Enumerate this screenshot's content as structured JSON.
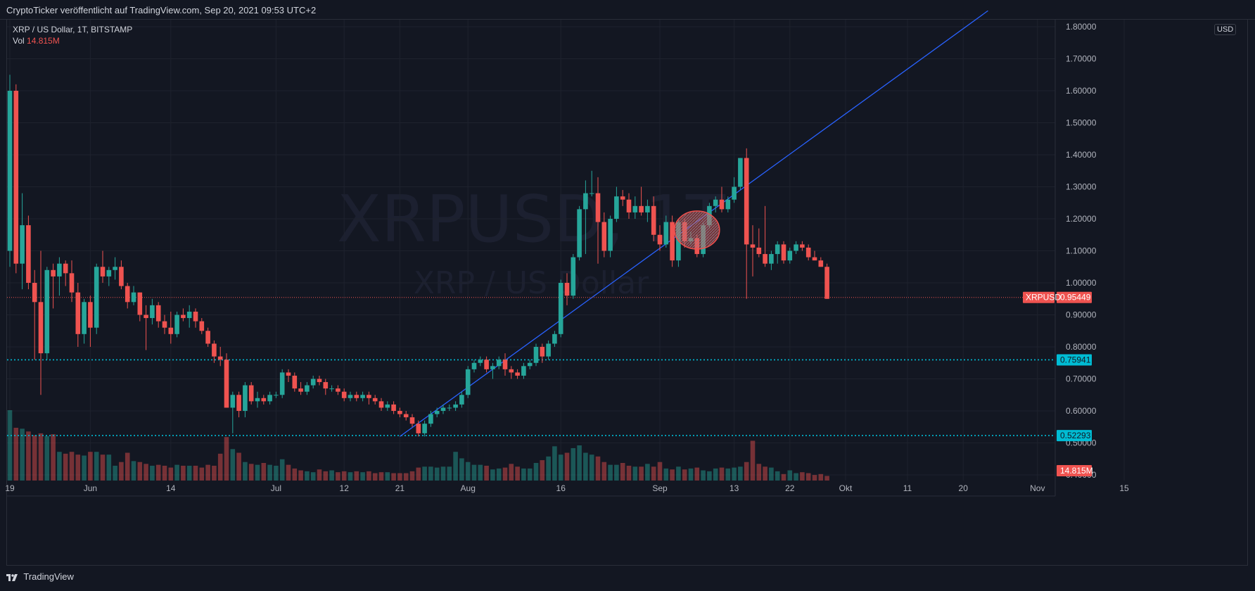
{
  "header": {
    "publisher_line": "CryptoTicker veröffentlicht auf TradingView.com, Sep 20, 2021 09:53 UTC+2"
  },
  "legend": {
    "symbol_line": "XRP / US Dollar, 1T, BITSTAMP",
    "vol_label": "Vol",
    "vol_value": "14.815M"
  },
  "watermark": {
    "ticker": "XRPUSD, 1T",
    "name": "XRP / US Dollar"
  },
  "currency_badge": "USD",
  "footer": {
    "brand": "TradingView"
  },
  "colors": {
    "up": "#26a69a",
    "down": "#ef5350",
    "trendline": "#2962ff",
    "level_line": "#00bcd4",
    "background": "#131722",
    "grid": "#1e222d"
  },
  "chart_data": {
    "type": "candlestick",
    "title": "",
    "symbol": "XRPUSD",
    "timeframe": "1T",
    "exchange": "BITSTAMP",
    "ylim": [
      0.38,
      1.82
    ],
    "y_ticks": [
      "1.80000",
      "1.70000",
      "1.60000",
      "1.50000",
      "1.40000",
      "1.30000",
      "1.20000",
      "1.10000",
      "1.00000",
      "0.90000",
      "0.80000",
      "0.70000",
      "0.60000",
      "0.50000",
      "0.40000"
    ],
    "x_ticks": [
      "19",
      "Jun",
      "14",
      "Jul",
      "12",
      "21",
      "Aug",
      "16",
      "Sep",
      "13",
      "22",
      "Okt",
      "11",
      "20",
      "Nov",
      "15"
    ],
    "x_start": "2021-05-19",
    "candles": [
      {
        "o": 1.1,
        "h": 1.65,
        "l": 1.05,
        "c": 1.6
      },
      {
        "o": 1.6,
        "h": 1.62,
        "l": 1.03,
        "c": 1.06
      },
      {
        "o": 1.06,
        "h": 1.28,
        "l": 0.98,
        "c": 1.18
      },
      {
        "o": 1.18,
        "h": 1.21,
        "l": 0.98,
        "c": 1.0
      },
      {
        "o": 1.0,
        "h": 1.04,
        "l": 0.76,
        "c": 0.94
      },
      {
        "o": 0.94,
        "h": 1.1,
        "l": 0.65,
        "c": 0.78
      },
      {
        "o": 0.78,
        "h": 1.05,
        "l": 0.76,
        "c": 1.04
      },
      {
        "o": 1.04,
        "h": 1.06,
        "l": 0.92,
        "c": 1.02
      },
      {
        "o": 1.02,
        "h": 1.08,
        "l": 0.96,
        "c": 1.06
      },
      {
        "o": 1.06,
        "h": 1.07,
        "l": 0.99,
        "c": 1.03
      },
      {
        "o": 1.03,
        "h": 1.07,
        "l": 0.94,
        "c": 0.97
      },
      {
        "o": 0.97,
        "h": 1.0,
        "l": 0.8,
        "c": 0.84
      },
      {
        "o": 0.84,
        "h": 0.95,
        "l": 0.81,
        "c": 0.94
      },
      {
        "o": 0.94,
        "h": 0.96,
        "l": 0.8,
        "c": 0.86
      },
      {
        "o": 0.86,
        "h": 1.06,
        "l": 0.84,
        "c": 1.05
      },
      {
        "o": 1.05,
        "h": 1.1,
        "l": 1.0,
        "c": 1.02
      },
      {
        "o": 1.02,
        "h": 1.05,
        "l": 0.99,
        "c": 1.04
      },
      {
        "o": 1.04,
        "h": 1.08,
        "l": 1.01,
        "c": 1.05
      },
      {
        "o": 1.05,
        "h": 1.07,
        "l": 0.98,
        "c": 0.99
      },
      {
        "o": 0.99,
        "h": 1.0,
        "l": 0.92,
        "c": 0.94
      },
      {
        "o": 0.94,
        "h": 0.99,
        "l": 0.93,
        "c": 0.97
      },
      {
        "o": 0.97,
        "h": 0.97,
        "l": 0.88,
        "c": 0.9
      },
      {
        "o": 0.9,
        "h": 0.93,
        "l": 0.79,
        "c": 0.89
      },
      {
        "o": 0.89,
        "h": 0.95,
        "l": 0.87,
        "c": 0.93
      },
      {
        "o": 0.93,
        "h": 0.94,
        "l": 0.86,
        "c": 0.88
      },
      {
        "o": 0.88,
        "h": 0.9,
        "l": 0.84,
        "c": 0.86
      },
      {
        "o": 0.86,
        "h": 0.91,
        "l": 0.81,
        "c": 0.84
      },
      {
        "o": 0.84,
        "h": 0.91,
        "l": 0.83,
        "c": 0.9
      },
      {
        "o": 0.9,
        "h": 0.92,
        "l": 0.88,
        "c": 0.89
      },
      {
        "o": 0.89,
        "h": 0.93,
        "l": 0.86,
        "c": 0.91
      },
      {
        "o": 0.91,
        "h": 0.92,
        "l": 0.86,
        "c": 0.88
      },
      {
        "o": 0.88,
        "h": 0.89,
        "l": 0.84,
        "c": 0.85
      },
      {
        "o": 0.85,
        "h": 0.86,
        "l": 0.8,
        "c": 0.81
      },
      {
        "o": 0.81,
        "h": 0.82,
        "l": 0.75,
        "c": 0.77
      },
      {
        "o": 0.77,
        "h": 0.8,
        "l": 0.74,
        "c": 0.76
      },
      {
        "o": 0.76,
        "h": 0.78,
        "l": 0.61,
        "c": 0.61
      },
      {
        "o": 0.61,
        "h": 0.66,
        "l": 0.53,
        "c": 0.65
      },
      {
        "o": 0.65,
        "h": 0.66,
        "l": 0.58,
        "c": 0.6
      },
      {
        "o": 0.6,
        "h": 0.69,
        "l": 0.58,
        "c": 0.68
      },
      {
        "o": 0.68,
        "h": 0.69,
        "l": 0.62,
        "c": 0.63
      },
      {
        "o": 0.63,
        "h": 0.66,
        "l": 0.61,
        "c": 0.64
      },
      {
        "o": 0.64,
        "h": 0.65,
        "l": 0.62,
        "c": 0.63
      },
      {
        "o": 0.63,
        "h": 0.66,
        "l": 0.62,
        "c": 0.65
      },
      {
        "o": 0.65,
        "h": 0.66,
        "l": 0.64,
        "c": 0.65
      },
      {
        "o": 0.65,
        "h": 0.73,
        "l": 0.64,
        "c": 0.72
      },
      {
        "o": 0.72,
        "h": 0.73,
        "l": 0.69,
        "c": 0.71
      },
      {
        "o": 0.71,
        "h": 0.72,
        "l": 0.66,
        "c": 0.67
      },
      {
        "o": 0.67,
        "h": 0.69,
        "l": 0.65,
        "c": 0.66
      },
      {
        "o": 0.66,
        "h": 0.69,
        "l": 0.65,
        "c": 0.68
      },
      {
        "o": 0.68,
        "h": 0.71,
        "l": 0.67,
        "c": 0.7
      },
      {
        "o": 0.7,
        "h": 0.71,
        "l": 0.68,
        "c": 0.69
      },
      {
        "o": 0.69,
        "h": 0.7,
        "l": 0.65,
        "c": 0.67
      },
      {
        "o": 0.67,
        "h": 0.68,
        "l": 0.66,
        "c": 0.67
      },
      {
        "o": 0.67,
        "h": 0.68,
        "l": 0.65,
        "c": 0.66
      },
      {
        "o": 0.66,
        "h": 0.67,
        "l": 0.63,
        "c": 0.64
      },
      {
        "o": 0.64,
        "h": 0.66,
        "l": 0.63,
        "c": 0.65
      },
      {
        "o": 0.65,
        "h": 0.66,
        "l": 0.63,
        "c": 0.64
      },
      {
        "o": 0.64,
        "h": 0.66,
        "l": 0.63,
        "c": 0.65
      },
      {
        "o": 0.65,
        "h": 0.66,
        "l": 0.62,
        "c": 0.64
      },
      {
        "o": 0.64,
        "h": 0.65,
        "l": 0.62,
        "c": 0.63
      },
      {
        "o": 0.63,
        "h": 0.64,
        "l": 0.6,
        "c": 0.61
      },
      {
        "o": 0.61,
        "h": 0.63,
        "l": 0.6,
        "c": 0.62
      },
      {
        "o": 0.62,
        "h": 0.63,
        "l": 0.59,
        "c": 0.6
      },
      {
        "o": 0.6,
        "h": 0.61,
        "l": 0.58,
        "c": 0.59
      },
      {
        "o": 0.59,
        "h": 0.6,
        "l": 0.57,
        "c": 0.58
      },
      {
        "o": 0.58,
        "h": 0.59,
        "l": 0.55,
        "c": 0.56
      },
      {
        "o": 0.56,
        "h": 0.57,
        "l": 0.52,
        "c": 0.53
      },
      {
        "o": 0.53,
        "h": 0.57,
        "l": 0.52,
        "c": 0.56
      },
      {
        "o": 0.56,
        "h": 0.6,
        "l": 0.55,
        "c": 0.59
      },
      {
        "o": 0.59,
        "h": 0.61,
        "l": 0.58,
        "c": 0.6
      },
      {
        "o": 0.6,
        "h": 0.62,
        "l": 0.59,
        "c": 0.61
      },
      {
        "o": 0.61,
        "h": 0.62,
        "l": 0.6,
        "c": 0.61
      },
      {
        "o": 0.61,
        "h": 0.63,
        "l": 0.6,
        "c": 0.62
      },
      {
        "o": 0.62,
        "h": 0.66,
        "l": 0.61,
        "c": 0.65
      },
      {
        "o": 0.65,
        "h": 0.74,
        "l": 0.64,
        "c": 0.73
      },
      {
        "o": 0.73,
        "h": 0.76,
        "l": 0.72,
        "c": 0.75
      },
      {
        "o": 0.75,
        "h": 0.77,
        "l": 0.74,
        "c": 0.76
      },
      {
        "o": 0.76,
        "h": 0.77,
        "l": 0.72,
        "c": 0.73
      },
      {
        "o": 0.73,
        "h": 0.75,
        "l": 0.7,
        "c": 0.74
      },
      {
        "o": 0.74,
        "h": 0.77,
        "l": 0.73,
        "c": 0.76
      },
      {
        "o": 0.76,
        "h": 0.78,
        "l": 0.71,
        "c": 0.73
      },
      {
        "o": 0.73,
        "h": 0.74,
        "l": 0.7,
        "c": 0.72
      },
      {
        "o": 0.72,
        "h": 0.73,
        "l": 0.7,
        "c": 0.71
      },
      {
        "o": 0.71,
        "h": 0.75,
        "l": 0.7,
        "c": 0.74
      },
      {
        "o": 0.74,
        "h": 0.76,
        "l": 0.73,
        "c": 0.75
      },
      {
        "o": 0.75,
        "h": 0.81,
        "l": 0.74,
        "c": 0.8
      },
      {
        "o": 0.8,
        "h": 0.81,
        "l": 0.75,
        "c": 0.77
      },
      {
        "o": 0.77,
        "h": 0.82,
        "l": 0.76,
        "c": 0.81
      },
      {
        "o": 0.81,
        "h": 0.85,
        "l": 0.8,
        "c": 0.84
      },
      {
        "o": 0.84,
        "h": 1.01,
        "l": 0.83,
        "c": 1.0
      },
      {
        "o": 1.0,
        "h": 1.03,
        "l": 0.93,
        "c": 0.96
      },
      {
        "o": 0.96,
        "h": 1.09,
        "l": 0.95,
        "c": 1.08
      },
      {
        "o": 1.08,
        "h": 1.24,
        "l": 1.07,
        "c": 1.23
      },
      {
        "o": 1.23,
        "h": 1.32,
        "l": 1.09,
        "c": 1.28
      },
      {
        "o": 1.28,
        "h": 1.35,
        "l": 1.27,
        "c": 1.28
      },
      {
        "o": 1.28,
        "h": 1.33,
        "l": 1.06,
        "c": 1.19
      },
      {
        "o": 1.19,
        "h": 1.22,
        "l": 1.08,
        "c": 1.1
      },
      {
        "o": 1.1,
        "h": 1.21,
        "l": 1.08,
        "c": 1.2
      },
      {
        "o": 1.2,
        "h": 1.3,
        "l": 1.19,
        "c": 1.27
      },
      {
        "o": 1.27,
        "h": 1.29,
        "l": 1.24,
        "c": 1.26
      },
      {
        "o": 1.26,
        "h": 1.28,
        "l": 1.2,
        "c": 1.22
      },
      {
        "o": 1.22,
        "h": 1.27,
        "l": 1.2,
        "c": 1.24
      },
      {
        "o": 1.24,
        "h": 1.3,
        "l": 1.21,
        "c": 1.22
      },
      {
        "o": 1.22,
        "h": 1.26,
        "l": 1.19,
        "c": 1.24
      },
      {
        "o": 1.24,
        "h": 1.27,
        "l": 1.13,
        "c": 1.15
      },
      {
        "o": 1.15,
        "h": 1.18,
        "l": 1.1,
        "c": 1.12
      },
      {
        "o": 1.12,
        "h": 1.21,
        "l": 1.11,
        "c": 1.19
      },
      {
        "o": 1.19,
        "h": 1.21,
        "l": 1.05,
        "c": 1.07
      },
      {
        "o": 1.07,
        "h": 1.2,
        "l": 1.05,
        "c": 1.19
      },
      {
        "o": 1.19,
        "h": 1.2,
        "l": 1.11,
        "c": 1.13
      },
      {
        "o": 1.13,
        "h": 1.16,
        "l": 1.12,
        "c": 1.14
      },
      {
        "o": 1.14,
        "h": 1.15,
        "l": 1.08,
        "c": 1.09
      },
      {
        "o": 1.09,
        "h": 1.19,
        "l": 1.08,
        "c": 1.18
      },
      {
        "o": 1.18,
        "h": 1.25,
        "l": 1.17,
        "c": 1.24
      },
      {
        "o": 1.24,
        "h": 1.27,
        "l": 1.22,
        "c": 1.26
      },
      {
        "o": 1.26,
        "h": 1.3,
        "l": 1.22,
        "c": 1.23
      },
      {
        "o": 1.23,
        "h": 1.27,
        "l": 1.22,
        "c": 1.26
      },
      {
        "o": 1.26,
        "h": 1.33,
        "l": 1.25,
        "c": 1.3
      },
      {
        "o": 1.3,
        "h": 1.39,
        "l": 1.29,
        "c": 1.39
      },
      {
        "o": 1.39,
        "h": 1.42,
        "l": 0.95,
        "c": 1.12
      },
      {
        "o": 1.12,
        "h": 1.18,
        "l": 1.02,
        "c": 1.11
      },
      {
        "o": 1.11,
        "h": 1.17,
        "l": 1.08,
        "c": 1.09
      },
      {
        "o": 1.09,
        "h": 1.24,
        "l": 1.05,
        "c": 1.06
      },
      {
        "o": 1.06,
        "h": 1.1,
        "l": 1.04,
        "c": 1.09
      },
      {
        "o": 1.09,
        "h": 1.13,
        "l": 1.06,
        "c": 1.12
      },
      {
        "o": 1.12,
        "h": 1.13,
        "l": 1.06,
        "c": 1.07
      },
      {
        "o": 1.07,
        "h": 1.11,
        "l": 1.06,
        "c": 1.1
      },
      {
        "o": 1.1,
        "h": 1.13,
        "l": 1.09,
        "c": 1.12
      },
      {
        "o": 1.12,
        "h": 1.13,
        "l": 1.1,
        "c": 1.11
      },
      {
        "o": 1.11,
        "h": 1.12,
        "l": 1.07,
        "c": 1.08
      },
      {
        "o": 1.08,
        "h": 1.1,
        "l": 1.07,
        "c": 1.07
      },
      {
        "o": 1.07,
        "h": 1.08,
        "l": 1.05,
        "c": 1.05
      },
      {
        "o": 1.05,
        "h": 1.06,
        "l": 0.95,
        "c": 0.95
      }
    ],
    "volume_relative": [
      0.76,
      0.57,
      0.56,
      0.53,
      0.49,
      0.51,
      0.48,
      0.5,
      0.31,
      0.29,
      0.31,
      0.28,
      0.27,
      0.31,
      0.31,
      0.28,
      0.28,
      0.16,
      0.2,
      0.3,
      0.21,
      0.2,
      0.18,
      0.16,
      0.17,
      0.16,
      0.14,
      0.17,
      0.16,
      0.16,
      0.16,
      0.14,
      0.17,
      0.16,
      0.29,
      0.47,
      0.34,
      0.3,
      0.2,
      0.18,
      0.17,
      0.19,
      0.17,
      0.16,
      0.23,
      0.17,
      0.13,
      0.11,
      0.1,
      0.09,
      0.12,
      0.1,
      0.11,
      0.09,
      0.1,
      0.09,
      0.1,
      0.09,
      0.1,
      0.08,
      0.09,
      0.09,
      0.08,
      0.08,
      0.08,
      0.1,
      0.14,
      0.15,
      0.15,
      0.14,
      0.15,
      0.15,
      0.31,
      0.24,
      0.2,
      0.17,
      0.17,
      0.16,
      0.12,
      0.13,
      0.14,
      0.18,
      0.15,
      0.13,
      0.13,
      0.19,
      0.22,
      0.26,
      0.37,
      0.28,
      0.3,
      0.35,
      0.38,
      0.3,
      0.28,
      0.26,
      0.2,
      0.17,
      0.17,
      0.19,
      0.16,
      0.15,
      0.15,
      0.18,
      0.15,
      0.2,
      0.13,
      0.12,
      0.15,
      0.12,
      0.13,
      0.14,
      0.11,
      0.1,
      0.13,
      0.14,
      0.13,
      0.14,
      0.15,
      0.2,
      0.43,
      0.18,
      0.15,
      0.14,
      0.1,
      0.07,
      0.11,
      0.08,
      0.09,
      0.08,
      0.06,
      0.07,
      0.05,
      0.06
    ],
    "last_price": "0.95449",
    "last_price_label": "XRPUSD",
    "last_volume": "14.815M",
    "horizontal_levels": [
      {
        "value": 0.75941,
        "label": "0.75941"
      },
      {
        "value": 0.52293,
        "label": "0.52293"
      }
    ],
    "trendline": {
      "from": {
        "date": "2021-07-21",
        "price": 0.52
      },
      "to": {
        "date": "2021-10-24",
        "price": 1.85
      }
    },
    "highlight_ellipse": {
      "center": {
        "date": "2021-09-07",
        "price": 1.165
      }
    },
    "grid": true
  }
}
